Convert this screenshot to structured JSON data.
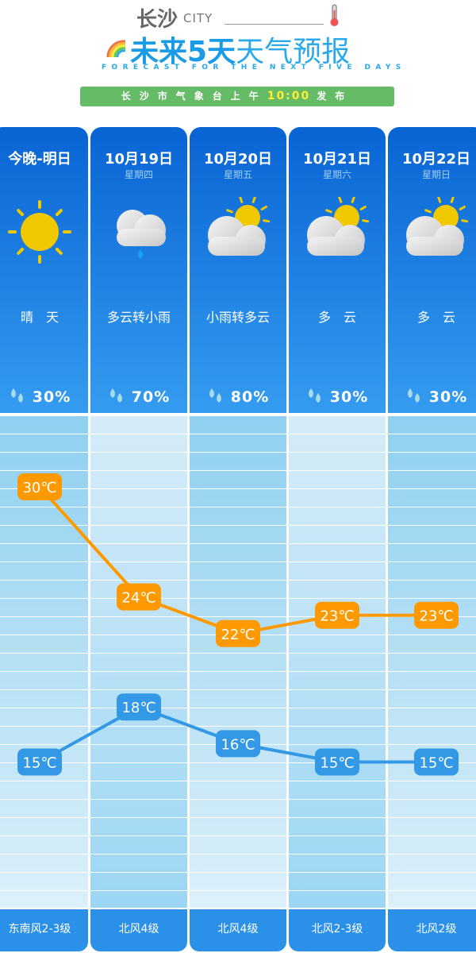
{
  "header": {
    "city": "长沙",
    "city_en": "CITY",
    "title_bold": "未来5天",
    "title_thin": "天气预报",
    "subtitle": "FORECAST FOR THE NEXT FIVE DAYS",
    "publish_prefix": "长沙市气象台上午",
    "publish_time": "10:00",
    "publish_suffix": "发布"
  },
  "days": [
    {
      "label": "今晚-明日",
      "weekday": "",
      "icon": "sun-icon",
      "weather": "晴　天",
      "rain": "30%",
      "wind": "东南风2-3级"
    },
    {
      "label": "10月19日",
      "weekday": "星期四",
      "icon": "cloud-rain-icon",
      "weather": "多云转小雨",
      "rain": "70%",
      "wind": "北风4级"
    },
    {
      "label": "10月20日",
      "weekday": "星期五",
      "icon": "sun-cloud-icon",
      "weather": "小雨转多云",
      "rain": "80%",
      "wind": "北风4级"
    },
    {
      "label": "10月21日",
      "weekday": "星期六",
      "icon": "sun-cloud-icon",
      "weather": "多　云",
      "rain": "30%",
      "wind": "北风2-3级"
    },
    {
      "label": "10月22日",
      "weekday": "星期日",
      "icon": "sun-cloud-icon",
      "weather": "多　云",
      "rain": "30%",
      "wind": "北风2级"
    }
  ],
  "colors": {
    "high": "#ff9900",
    "low": "#3399e6",
    "card": "#1a7ee0"
  },
  "chart_data": {
    "type": "line",
    "categories": [
      "今晚-明日",
      "10月19日",
      "10月20日",
      "10月21日",
      "10月22日"
    ],
    "unit": "℃",
    "series": [
      {
        "values": [
          30,
          24,
          22,
          23,
          23
        ],
        "labels": [
          "30℃",
          "24℃",
          "22℃",
          "23℃",
          "23℃"
        ]
      },
      {
        "values": [
          15,
          18,
          16,
          15,
          15
        ],
        "labels": [
          "15℃",
          "18℃",
          "16℃",
          "15℃",
          "15℃"
        ]
      }
    ]
  }
}
